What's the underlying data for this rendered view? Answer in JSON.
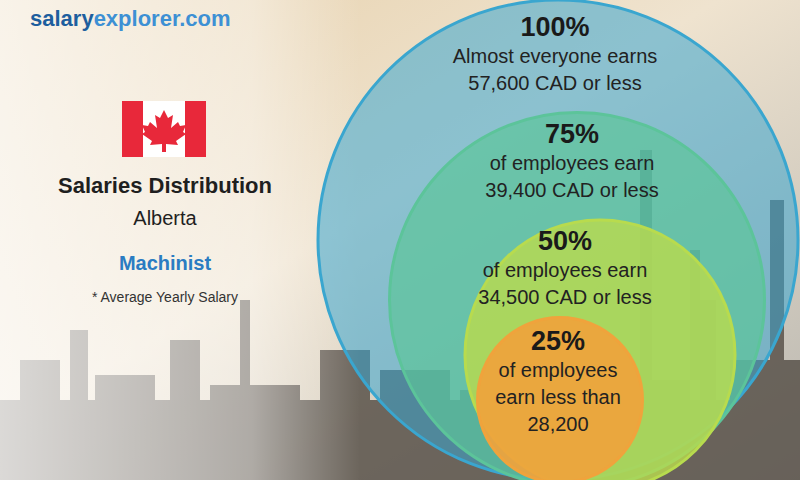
{
  "chart_data": {
    "type": "nested_circles",
    "site": [
      "salary",
      "explorer.com"
    ],
    "title": "Salaries Distribution",
    "subtitle": "Alberta",
    "job": "Machinist",
    "note": "* Average Yearly Salary",
    "percentiles": [
      100,
      75,
      50,
      25
    ],
    "percentile_labels": [
      "100%",
      "75%",
      "50%",
      "25%"
    ],
    "captions": [
      [
        "Almost everyone earns"
      ],
      [
        "of employees earn"
      ],
      [
        "of employees earn"
      ],
      [
        "of employees",
        "earn less than"
      ]
    ],
    "values": [
      57600,
      39400,
      34500,
      28200
    ],
    "value_labels": [
      "57,600 CAD or less",
      "39,400 CAD or less",
      "34,500 CAD or less",
      "28,200"
    ],
    "colors": [
      "#3aa6cf",
      "#5cc49a",
      "#b8db4e",
      "#f0a33c"
    ],
    "data_labels": true
  }
}
